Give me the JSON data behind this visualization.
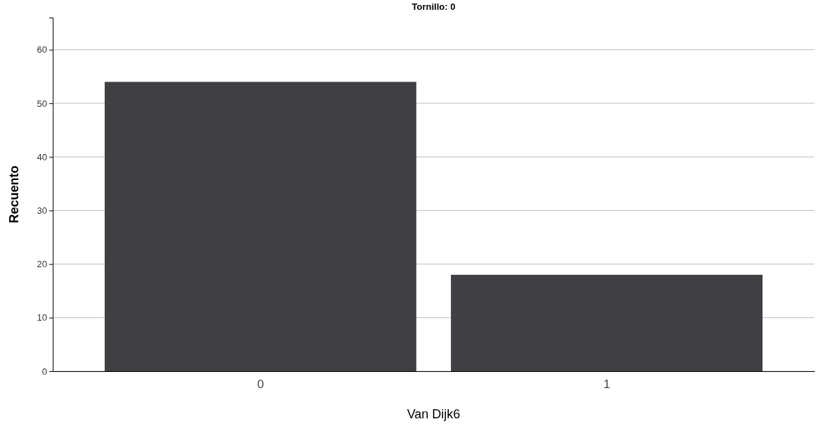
{
  "chart_data": {
    "type": "bar",
    "title": "Tornillo: 0",
    "xlabel": "Van Dijk6",
    "ylabel": "Recuento",
    "categories": [
      "0",
      "1"
    ],
    "values": [
      54,
      18
    ],
    "color": "#3f3f44",
    "ylim": [
      0,
      66
    ],
    "yticks": [
      0,
      10,
      20,
      30,
      40,
      50,
      60
    ],
    "grid": "y"
  }
}
